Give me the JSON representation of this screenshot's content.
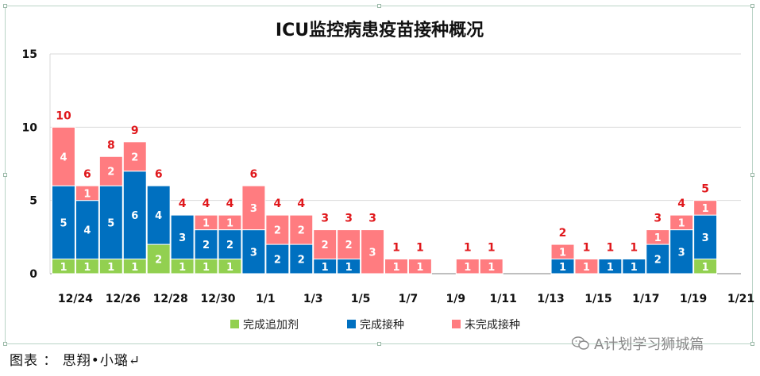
{
  "chart_data": {
    "type": "bar",
    "stacked": true,
    "title": "ICU监控病患疫苗接种概况",
    "xlabel": "",
    "ylabel": "",
    "ylim": [
      0,
      15
    ],
    "yticks": [
      0,
      5,
      10,
      15
    ],
    "grid": true,
    "legend_position": "bottom",
    "categories": [
      "12/24",
      "12/25",
      "12/26",
      "12/27",
      "12/28",
      "12/29",
      "12/30",
      "12/31",
      "1/1",
      "1/2",
      "1/3",
      "1/4",
      "1/5",
      "1/6",
      "1/7",
      "1/8",
      "1/9",
      "1/10",
      "1/11",
      "1/12",
      "1/13",
      "1/14",
      "1/15",
      "1/16",
      "1/17",
      "1/18",
      "1/19",
      "1/20",
      "1/21"
    ],
    "xtick_labels": [
      "12/24",
      "12/26",
      "12/28",
      "12/30",
      "1/1",
      "1/3",
      "1/5",
      "1/7",
      "1/9",
      "1/11",
      "1/13",
      "1/15",
      "1/17",
      "1/19",
      "1/21"
    ],
    "series": [
      {
        "name": "完成追加剂",
        "color": "#92d050",
        "values": [
          1,
          1,
          1,
          1,
          2,
          1,
          1,
          1,
          0,
          0,
          0,
          0,
          0,
          0,
          0,
          0,
          0,
          0,
          0,
          0,
          0,
          0,
          0,
          0,
          0,
          0,
          0,
          1,
          0
        ]
      },
      {
        "name": "完成接种",
        "color": "#0070c0",
        "values": [
          5,
          4,
          5,
          6,
          4,
          3,
          2,
          2,
          3,
          2,
          2,
          1,
          1,
          0,
          0,
          0,
          0,
          0,
          0,
          0,
          0,
          1,
          0,
          1,
          1,
          2,
          3,
          3,
          0
        ]
      },
      {
        "name": "未完成接种",
        "color": "#ff7c80",
        "values": [
          4,
          1,
          2,
          2,
          0,
          0,
          1,
          1,
          3,
          2,
          2,
          2,
          2,
          3,
          1,
          1,
          0,
          1,
          1,
          0,
          0,
          1,
          1,
          0,
          0,
          1,
          1,
          1,
          0
        ]
      }
    ],
    "totals": [
      10,
      6,
      8,
      9,
      6,
      4,
      4,
      4,
      6,
      4,
      4,
      3,
      3,
      3,
      1,
      1,
      0,
      1,
      1,
      0,
      0,
      2,
      1,
      1,
      1,
      3,
      4,
      5,
      0
    ]
  },
  "caption": "图表 ： 思翔•小璐↵",
  "watermark": "A计划学习狮城篇"
}
